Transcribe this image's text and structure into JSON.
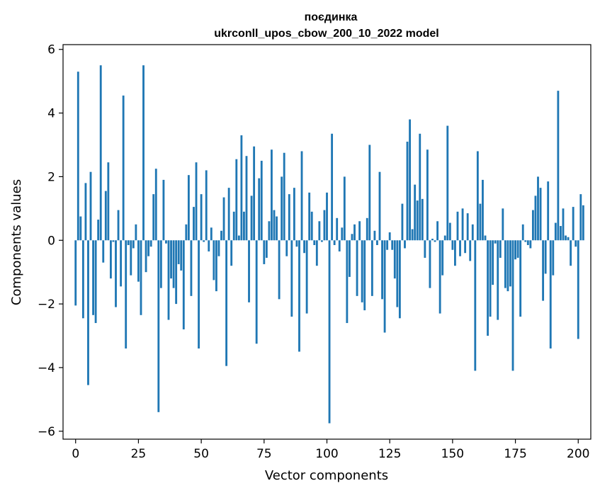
{
  "chart_data": {
    "type": "bar",
    "title": "поєдинка",
    "subtitle": "ukrconll_upos_cbow_200_10_2022 model",
    "xlabel": "Vector components",
    "ylabel": "Components values",
    "xlim": [
      -5,
      205
    ],
    "ylim": [
      -6.25,
      6.15
    ],
    "xticks": [
      0,
      25,
      50,
      75,
      100,
      125,
      150,
      175,
      200
    ],
    "yticks": [
      -6,
      -4,
      -2,
      0,
      2,
      4,
      6
    ],
    "ytick_labels": [
      "−6",
      "−4",
      "−2",
      "0",
      "2",
      "4",
      "6"
    ],
    "bar_color": "#1f77b4",
    "grid": false,
    "values": [
      -2.05,
      5.3,
      0.75,
      -2.45,
      1.8,
      -4.55,
      2.15,
      -2.35,
      -2.6,
      0.65,
      5.5,
      -0.7,
      1.55,
      2.45,
      -1.2,
      -0.05,
      -2.1,
      0.95,
      -1.45,
      4.55,
      -3.4,
      -0.15,
      -1.1,
      -0.25,
      0.5,
      -1.3,
      -2.35,
      5.5,
      -1.0,
      -0.5,
      -0.2,
      1.45,
      2.25,
      -5.4,
      -1.5,
      1.9,
      -0.1,
      -2.5,
      -1.2,
      -1.5,
      -2.0,
      -0.75,
      -0.95,
      -2.8,
      0.5,
      2.05,
      -1.75,
      1.05,
      2.45,
      -3.4,
      1.45,
      -0.05,
      2.2,
      -0.35,
      0.4,
      -1.25,
      -1.6,
      -0.5,
      0.3,
      1.35,
      -3.95,
      1.65,
      -0.8,
      0.9,
      2.55,
      0.15,
      3.3,
      0.9,
      2.65,
      -1.95,
      1.4,
      2.95,
      -3.25,
      1.95,
      2.5,
      -0.75,
      -0.55,
      0.6,
      2.85,
      0.95,
      0.75,
      -1.85,
      2.0,
      2.75,
      -0.5,
      1.45,
      -2.4,
      1.65,
      -0.2,
      -3.5,
      2.8,
      -0.4,
      -2.3,
      1.5,
      0.9,
      -0.15,
      -0.8,
      0.6,
      -0.05,
      0.95,
      1.5,
      -5.75,
      3.35,
      -0.15,
      0.7,
      -0.35,
      0.4,
      2.0,
      -2.6,
      -1.15,
      0.2,
      0.5,
      -1.75,
      0.6,
      -1.95,
      -2.2,
      0.7,
      3.0,
      -1.75,
      0.3,
      -0.15,
      2.15,
      -1.85,
      -2.9,
      -0.3,
      0.25,
      -0.3,
      -1.2,
      -2.1,
      -2.45,
      1.15,
      -0.25,
      3.1,
      3.8,
      0.35,
      1.75,
      1.25,
      3.35,
      1.3,
      -0.55,
      2.85,
      -1.5,
      0.05,
      -0.05,
      0.6,
      -2.3,
      -1.1,
      0.15,
      3.6,
      0.55,
      -0.3,
      -0.8,
      0.9,
      -0.5,
      1.0,
      -0.4,
      0.85,
      -0.65,
      0.5,
      -4.1,
      2.8,
      1.15,
      1.9,
      0.15,
      -3.0,
      -2.4,
      -1.4,
      -0.1,
      -2.5,
      -0.55,
      1.0,
      -1.5,
      -1.6,
      -1.45,
      -4.1,
      -0.6,
      -0.55,
      -2.4,
      0.5,
      -0.05,
      -0.15,
      -0.25,
      0.95,
      1.4,
      2.0,
      1.65,
      -1.9,
      -1.05,
      1.85,
      -3.4,
      -1.1,
      0.55,
      4.7,
      0.45,
      1.0,
      0.15,
      0.1,
      -0.8,
      1.05,
      -0.2,
      -3.1,
      1.45,
      1.1
    ]
  }
}
